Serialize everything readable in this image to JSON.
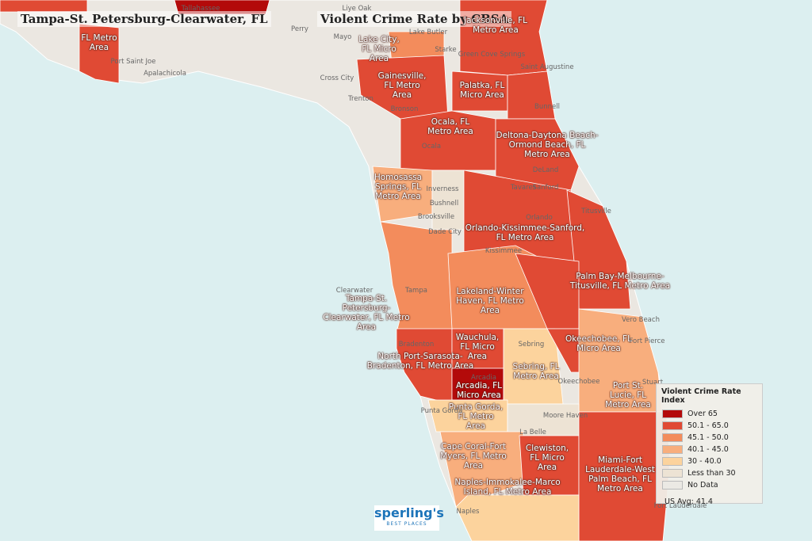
{
  "header": {
    "title": "Tampa-St. Petersburg-Clearwater, FL",
    "map_title": "Violent Crime Rate by CBSA"
  },
  "legend": {
    "title": "Violent Crime Rate Index",
    "items": [
      {
        "label": "Over 65",
        "color": "#b30a0a"
      },
      {
        "label": "50.1 - 65.0",
        "color": "#e04a34"
      },
      {
        "label": "45.1 - 50.0",
        "color": "#f38c5c"
      },
      {
        "label": "40.1 - 45.0",
        "color": "#f8ae7d"
      },
      {
        "label": "30 - 40.0",
        "color": "#fcd39d"
      },
      {
        "label": "Less than 30",
        "color": "#ede3d4"
      },
      {
        "label": "No Data",
        "color": "#ebe9e4"
      }
    ],
    "note": "US Avg: 41.4"
  },
  "areas": [
    "FL Metro Area",
    "Lake City, FL Micro Area",
    "Jacksonville, FL Metro Area",
    "Gainesville, FL Metro Area",
    "Palatka, FL Micro Area",
    "Ocala, FL Metro Area",
    "Deltona-Daytona Beach-Ormond Beach, FL Metro Area",
    "Homosassa Springs, FL Metro Area",
    "Orlando-Kissimmee-Sanford, FL Metro Area",
    "Palm Bay-Melbourne-Titusville, FL Metro Area",
    "Tampa-St. Petersburg-Clearwater, FL Metro Area",
    "Lakeland-Winter Haven, FL Metro Area",
    "Wauchula, FL Micro Area",
    "Okeechobee, FL Micro Area",
    "North Port-Sarasota-Bradenton, FL Metro Area",
    "Sebring, FL Metro Area",
    "Arcadia, FL Micro Area",
    "Port St. Lucie, FL Metro Area",
    "Punta Gorda, FL Metro Area",
    "Cape Coral-Fort Myers, FL Metro Area",
    "Clewiston, FL Micro Area",
    "Miami-Fort Lauderdale-West Palm Beach, FL Metro Area",
    "Naples-Immokalee-Marco Island, FL Metro Area"
  ],
  "cities": [
    "Liye Oak",
    "Tallahassee",
    "Perry",
    "Mayo",
    "Lake Butler",
    "Starke",
    "Port Saint Joe",
    "Apalachicola",
    "Cross City",
    "Trenton",
    "Bronson",
    "Green Cove Springs",
    "Saint Augustine",
    "Bunnell",
    "Ocala",
    "Inverness",
    "Bushnell",
    "Brooksville",
    "Dade City",
    "Tavares",
    "DeLand",
    "Sanford",
    "Orlando",
    "Titusville",
    "Kissimmee",
    "Clearwater",
    "Tampa",
    "Bradenton",
    "Sebring",
    "Vero Beach",
    "Fort Pierce",
    "Stuart",
    "Okeechobee",
    "Arcadia",
    "Punta Gorda",
    "Moore Haven",
    "La Belle",
    "Naples",
    "Fort Lauderdale"
  ],
  "logo": {
    "name": "sperling's",
    "tagline": "BEST PLACES"
  }
}
